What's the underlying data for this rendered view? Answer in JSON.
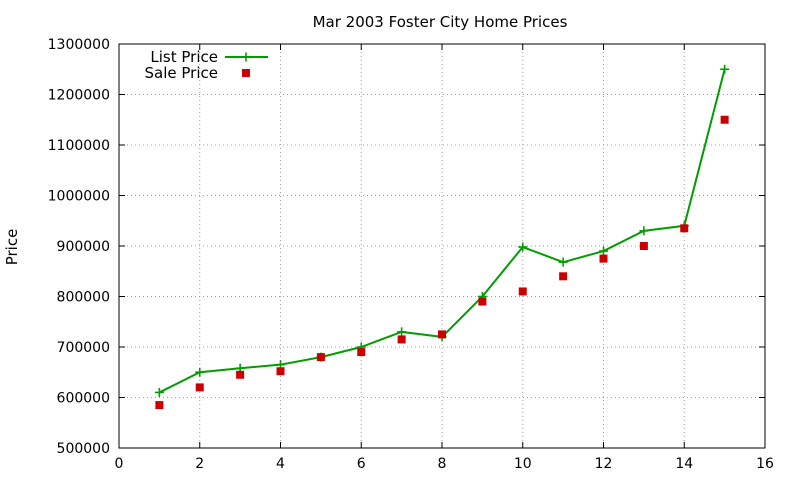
{
  "chart_data": {
    "type": "line",
    "title": "Mar 2003 Foster City Home Prices",
    "xlabel": "",
    "ylabel": "Price",
    "xlim": [
      0,
      16
    ],
    "ylim": [
      500000,
      1300000
    ],
    "x_ticks": [
      "0",
      "2",
      "4",
      "6",
      "8",
      "10",
      "12",
      "14",
      "16"
    ],
    "y_ticks": [
      "500000",
      "600000",
      "700000",
      "800000",
      "900000",
      "1000000",
      "1100000",
      "1200000",
      "1300000"
    ],
    "grid": true,
    "legend_position": "top-left",
    "series": [
      {
        "name": "List Price",
        "style": "lines+points",
        "marker": "plus",
        "color": "#009e00",
        "x": [
          1,
          2,
          3,
          4,
          5,
          6,
          7,
          8,
          9,
          10,
          11,
          12,
          13,
          14,
          15
        ],
        "y": [
          610000,
          650000,
          658000,
          665000,
          680000,
          700000,
          730000,
          720000,
          800000,
          898000,
          868000,
          890000,
          930000,
          940000,
          1250000
        ]
      },
      {
        "name": "Sale Price",
        "style": "points",
        "marker": "square",
        "color": "#cc0000",
        "x": [
          1,
          2,
          3,
          4,
          5,
          6,
          7,
          8,
          9,
          10,
          11,
          12,
          13,
          14,
          15
        ],
        "y": [
          585000,
          620000,
          645000,
          652000,
          680000,
          690000,
          715000,
          725000,
          790000,
          810000,
          840000,
          875000,
          900000,
          935000,
          1150000
        ]
      }
    ]
  }
}
